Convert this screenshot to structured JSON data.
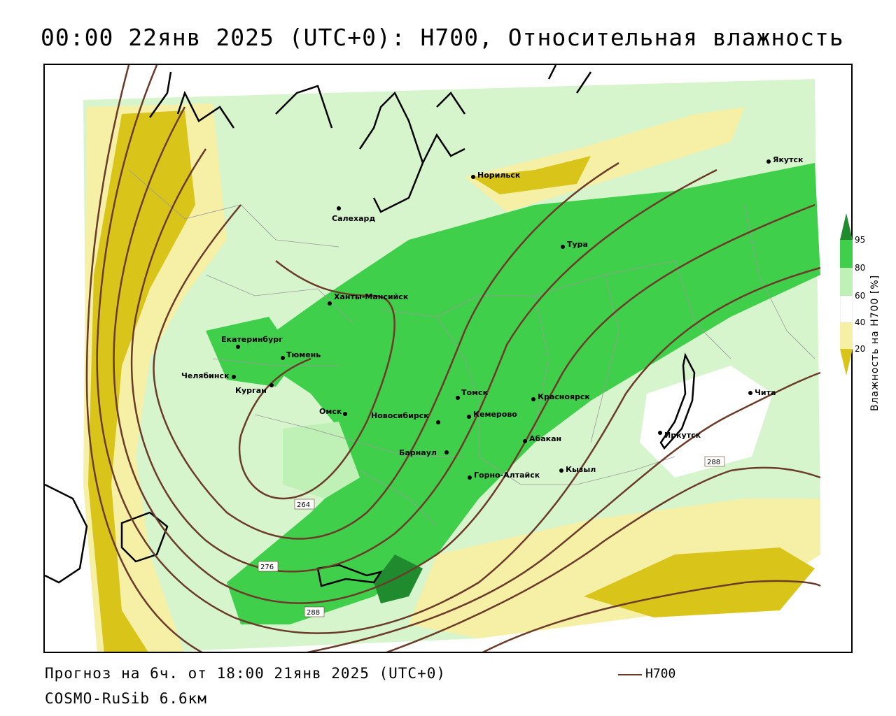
{
  "title": "00:00 22янв 2025 (UTC+0): H700, Относительная влажность",
  "footer": {
    "forecast": "Прогноз на 6ч. от 18:00 21янв 2025 (UTC+0)",
    "model": "COSMO-RuSib 6.6км"
  },
  "legend": {
    "line_label": "H700",
    "line_color": "#6b3b2a"
  },
  "colorbar": {
    "label": "Влажность на H700 [%]",
    "ticks": [
      "95",
      "80",
      "60",
      "40",
      "20"
    ],
    "colors": {
      "above_95": "#1f8a2e",
      "c80_95": "#3fcf4a",
      "c60_80": "#bff0b5",
      "c40_60": "#ffffff",
      "c20_40": "#f6efa6",
      "below_20": "#d9c41a"
    }
  },
  "isoline_labels": [
    "264",
    "276",
    "288",
    "288"
  ],
  "cities": [
    "Норильск",
    "Якутск",
    "Салехард",
    "Тура",
    "Ханты-Мансийск",
    "Екатеринбург",
    "Тюмень",
    "Челябинск",
    "Курган",
    "Омск",
    "Новосибирск",
    "Томск",
    "Кемерово",
    "Красноярск",
    "Барнаул",
    "Абакан",
    "Горно-Алтайск",
    "Кызыл",
    "Иркутск",
    "Чита"
  ]
}
